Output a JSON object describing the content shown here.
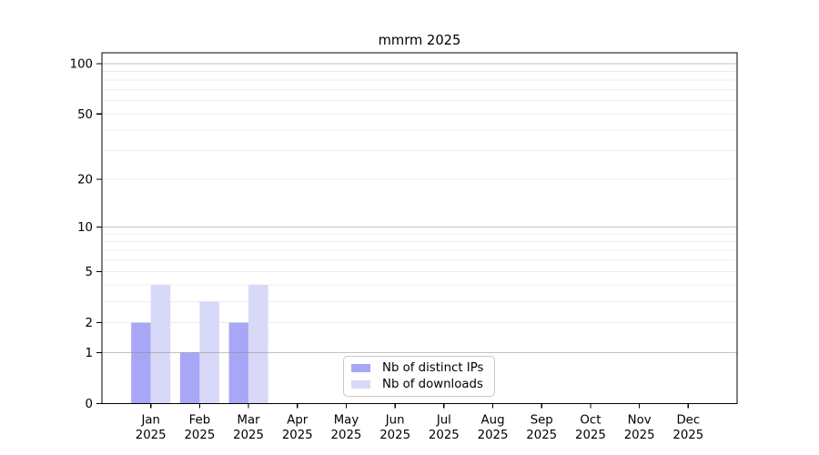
{
  "chart_data": {
    "type": "bar",
    "title": "mmrm 2025",
    "categories": [
      "Jan",
      "Feb",
      "Mar",
      "Apr",
      "May",
      "Jun",
      "Jul",
      "Aug",
      "Sep",
      "Oct",
      "Nov",
      "Dec"
    ],
    "category_year": "2025",
    "series": [
      {
        "name": "Nb of distinct IPs",
        "color": "#a7a7f5",
        "values": [
          2,
          1,
          2,
          0,
          0,
          0,
          0,
          0,
          0,
          0,
          0,
          0
        ]
      },
      {
        "name": "Nb of downloads",
        "color": "#d8d8f8",
        "values": [
          4,
          3,
          4,
          0,
          0,
          0,
          0,
          0,
          0,
          0,
          0,
          0
        ]
      }
    ],
    "y_axis": {
      "scale": "log1p",
      "ticks": [
        0,
        1,
        2,
        5,
        10,
        20,
        50,
        100
      ],
      "max": 116
    },
    "grid": {
      "major_at": [
        1,
        10,
        100
      ],
      "minor_at": [
        2,
        3,
        4,
        5,
        6,
        7,
        8,
        9,
        20,
        30,
        40,
        50,
        60,
        70,
        80,
        90
      ],
      "major_color": "#888888",
      "minor_color": "#ededed"
    },
    "legend_position": "lower-center",
    "axis_color": "#000000",
    "background": "#ffffff"
  }
}
